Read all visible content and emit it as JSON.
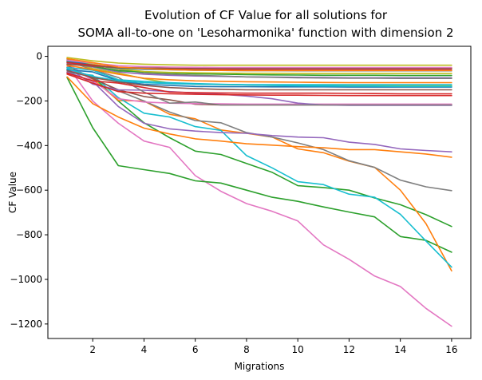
{
  "chart_data": {
    "type": "line",
    "title_line1": "Evolution of CF Value for all solutions for",
    "title_line2": "SOMA all-to-one on 'Lesoharmonika' function with dimension 2",
    "xlabel": "Migrations",
    "ylabel": "CF Value",
    "xlim": [
      0.25,
      16.75
    ],
    "ylim": [
      -1265,
      45
    ],
    "xticks": [
      2,
      4,
      6,
      8,
      10,
      12,
      14,
      16
    ],
    "yticks": [
      0,
      -200,
      -400,
      -600,
      -800,
      -1000,
      -1200
    ],
    "grid": false,
    "x": [
      1,
      2,
      3,
      4,
      5,
      6,
      7,
      8,
      9,
      10,
      11,
      12,
      13,
      14,
      15,
      16
    ],
    "series": [
      {
        "color": "#e377c2",
        "values": [
          -40,
          -200,
          -300,
          -380,
          -408,
          -535,
          -605,
          -660,
          -695,
          -738,
          -845,
          -910,
          -985,
          -1032,
          -1130,
          -1210
        ]
      },
      {
        "color": "#2ca02c",
        "values": [
          -95,
          -320,
          -490,
          -508,
          -525,
          -558,
          -568,
          -600,
          -632,
          -650,
          -675,
          -698,
          -720,
          -808,
          -825,
          -878
        ]
      },
      {
        "color": "#2ca02c",
        "values": [
          -60,
          -90,
          -200,
          -298,
          -365,
          -425,
          -440,
          -480,
          -520,
          -580,
          -588,
          -600,
          -635,
          -665,
          -710,
          -763
        ]
      },
      {
        "color": "#ff7f0e",
        "values": [
          -48,
          -102,
          -198,
          -200,
          -260,
          -280,
          -330,
          -345,
          -362,
          -415,
          -432,
          -470,
          -498,
          -600,
          -750,
          -962
        ]
      },
      {
        "color": "#17becf",
        "values": [
          -72,
          -85,
          -185,
          -255,
          -272,
          -315,
          -332,
          -445,
          -500,
          -562,
          -575,
          -618,
          -632,
          -708,
          -828,
          -945
        ]
      },
      {
        "color": "#7f7f7f",
        "values": [
          -58,
          -95,
          -155,
          -200,
          -250,
          -288,
          -298,
          -342,
          -362,
          -388,
          -418,
          -468,
          -498,
          -555,
          -585,
          -602
        ]
      },
      {
        "color": "#ff7f0e",
        "values": [
          -92,
          -212,
          -272,
          -322,
          -348,
          -370,
          -380,
          -392,
          -398,
          -405,
          -410,
          -418,
          -418,
          -428,
          -438,
          -452
        ]
      },
      {
        "color": "#9467bd",
        "values": [
          -70,
          -112,
          -225,
          -300,
          -325,
          -335,
          -342,
          -345,
          -355,
          -362,
          -365,
          -385,
          -395,
          -415,
          -422,
          -428
        ]
      },
      {
        "color": "#8c564b",
        "values": [
          -40,
          -100,
          -150,
          -180,
          -195,
          -215,
          -218,
          -218,
          -218,
          -218,
          -218,
          -218,
          -218,
          -218,
          -218,
          -218
        ]
      },
      {
        "color": "#e377c2",
        "values": [
          -30,
          -110,
          -190,
          -205,
          -210,
          -212,
          -213,
          -214,
          -214,
          -214,
          -214,
          -214,
          -214,
          -214,
          -214,
          -214
        ]
      },
      {
        "color": "#9467bd",
        "values": [
          -50,
          -125,
          -150,
          -152,
          -158,
          -165,
          -170,
          -178,
          -190,
          -210,
          -218,
          -220,
          -220,
          -220,
          -220,
          -220
        ]
      },
      {
        "color": "#7f7f7f",
        "values": [
          -20,
          -60,
          -95,
          -160,
          -210,
          -205,
          -218,
          -218,
          -218,
          -218,
          -218,
          -218,
          -218,
          -218,
          -218,
          -218
        ]
      },
      {
        "color": "#d62728",
        "values": [
          -80,
          -120,
          -158,
          -165,
          -168,
          -170,
          -172,
          -173,
          -174,
          -174,
          -175,
          -176,
          -176,
          -176,
          -176,
          -176
        ]
      },
      {
        "color": "#d62728",
        "values": [
          -75,
          -110,
          -120,
          -140,
          -160,
          -163,
          -164,
          -165,
          -165,
          -165,
          -165,
          -166,
          -167,
          -168,
          -168,
          -168
        ]
      },
      {
        "color": "#bcbd22",
        "values": [
          -20,
          -55,
          -75,
          -100,
          -120,
          -125,
          -126,
          -128,
          -130,
          -130,
          -131,
          -132,
          -132,
          -133,
          -133,
          -133
        ]
      },
      {
        "color": "#1f77b4",
        "values": [
          -60,
          -70,
          -110,
          -125,
          -130,
          -135,
          -136,
          -136,
          -137,
          -137,
          -137,
          -138,
          -138,
          -138,
          -138,
          -138
        ]
      },
      {
        "color": "#17becf",
        "values": [
          -50,
          -62,
          -105,
          -112,
          -118,
          -122,
          -125,
          -128,
          -130,
          -132,
          -133,
          -134,
          -134,
          -135,
          -135,
          -135
        ]
      },
      {
        "color": "#ff7f0e",
        "values": [
          -40,
          -60,
          -80,
          -98,
          -105,
          -110,
          -112,
          -114,
          -115,
          -116,
          -117,
          -118,
          -118,
          -118,
          -118,
          -118
        ]
      },
      {
        "color": "#9467bd",
        "values": [
          -30,
          -48,
          -70,
          -80,
          -85,
          -88,
          -90,
          -92,
          -93,
          -94,
          -95,
          -96,
          -96,
          -96,
          -96,
          -96
        ]
      },
      {
        "color": "#7f7f7f",
        "values": [
          -15,
          -38,
          -58,
          -75,
          -80,
          -85,
          -88,
          -92,
          -94,
          -96,
          -97,
          -98,
          -98,
          -99,
          -99,
          -99
        ]
      },
      {
        "color": "#2ca02c",
        "values": [
          -25,
          -45,
          -65,
          -70,
          -75,
          -78,
          -80,
          -82,
          -83,
          -84,
          -85,
          -85,
          -85,
          -86,
          -86,
          -86
        ]
      },
      {
        "color": "#bcbd22",
        "values": [
          -10,
          -35,
          -55,
          -68,
          -72,
          -74,
          -75,
          -76,
          -76,
          -77,
          -77,
          -77,
          -77,
          -77,
          -77,
          -77
        ]
      },
      {
        "color": "#1f77b4",
        "values": [
          -20,
          -40,
          -52,
          -58,
          -60,
          -62,
          -63,
          -64,
          -64,
          -65,
          -65,
          -65,
          -65,
          -65,
          -65,
          -65
        ]
      },
      {
        "color": "#d62728",
        "values": [
          -28,
          -40,
          -50,
          -54,
          -56,
          -57,
          -58,
          -58,
          -58,
          -58,
          -58,
          -58,
          -58,
          -58,
          -58,
          -58
        ]
      },
      {
        "color": "#8c564b",
        "values": [
          -35,
          -45,
          -50,
          -52,
          -53,
          -54,
          -54,
          -54,
          -54,
          -54,
          -54,
          -54,
          -54,
          -54,
          -54,
          -54
        ]
      },
      {
        "color": "#e377c2",
        "values": [
          -18,
          -30,
          -42,
          -46,
          -48,
          -49,
          -50,
          -50,
          -50,
          -50,
          -50,
          -50,
          -50,
          -50,
          -50,
          -50
        ]
      },
      {
        "color": "#bcbd22",
        "values": [
          -5,
          -20,
          -30,
          -35,
          -38,
          -40,
          -40,
          -40,
          -40,
          -40,
          -40,
          -40,
          -40,
          -40,
          -40,
          -40
        ]
      },
      {
        "color": "#17becf",
        "values": [
          -55,
          -90,
          -110,
          -118,
          -122,
          -125,
          -126,
          -127,
          -127,
          -127,
          -127,
          -127,
          -127,
          -127,
          -127,
          -127
        ]
      },
      {
        "color": "#8c564b",
        "values": [
          -65,
          -95,
          -115,
          -130,
          -140,
          -145,
          -148,
          -150,
          -150,
          -150,
          -150,
          -150,
          -150,
          -150,
          -150,
          -150
        ]
      },
      {
        "color": "#ff7f0e",
        "values": [
          -10,
          -28,
          -48,
          -55,
          -60,
          -62,
          -63,
          -64,
          -64,
          -64,
          -64,
          -64,
          -64,
          -64,
          -64,
          -64
        ]
      }
    ]
  }
}
